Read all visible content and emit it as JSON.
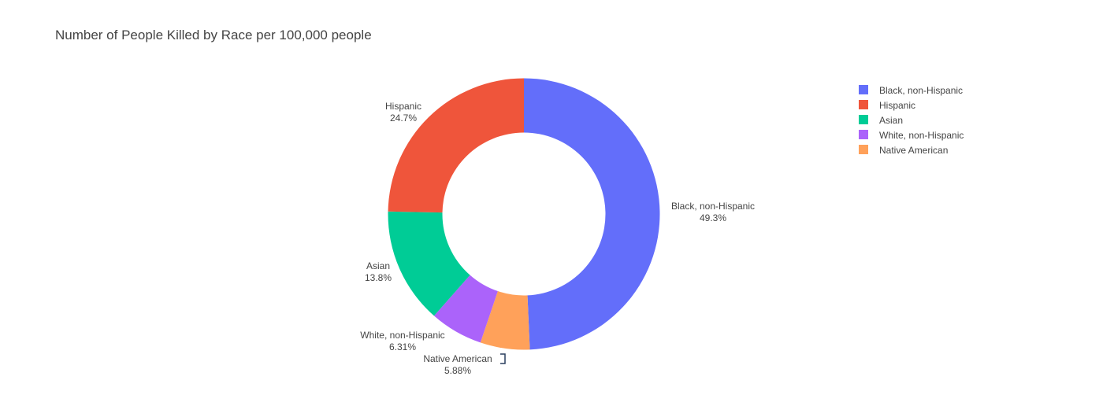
{
  "chart_data": {
    "type": "pie",
    "title": "Number of People Killed by Race per 100,000 people",
    "hole": 0.6,
    "direction": "clockwise",
    "labels": [
      "Black, non-Hispanic",
      "Native American",
      "White, non-Hispanic",
      "Asian",
      "Hispanic"
    ],
    "values": [
      49.3,
      5.88,
      6.31,
      13.8,
      24.7
    ],
    "percent_labels": [
      "49.3%",
      "5.88%",
      "6.31%",
      "13.8%",
      "24.7%"
    ],
    "colors": [
      "#636efa",
      "#ffa15a",
      "#ab63fa",
      "#00cc96",
      "#ef553b"
    ],
    "legend": {
      "placement": "top-right",
      "entries": [
        {
          "label": "Black, non-Hispanic",
          "color": "#636efa"
        },
        {
          "label": "Hispanic",
          "color": "#ef553b"
        },
        {
          "label": "Asian",
          "color": "#00cc96"
        },
        {
          "label": "White, non-Hispanic",
          "color": "#ab63fa"
        },
        {
          "label": "Native American",
          "color": "#ffa15a"
        }
      ]
    }
  }
}
